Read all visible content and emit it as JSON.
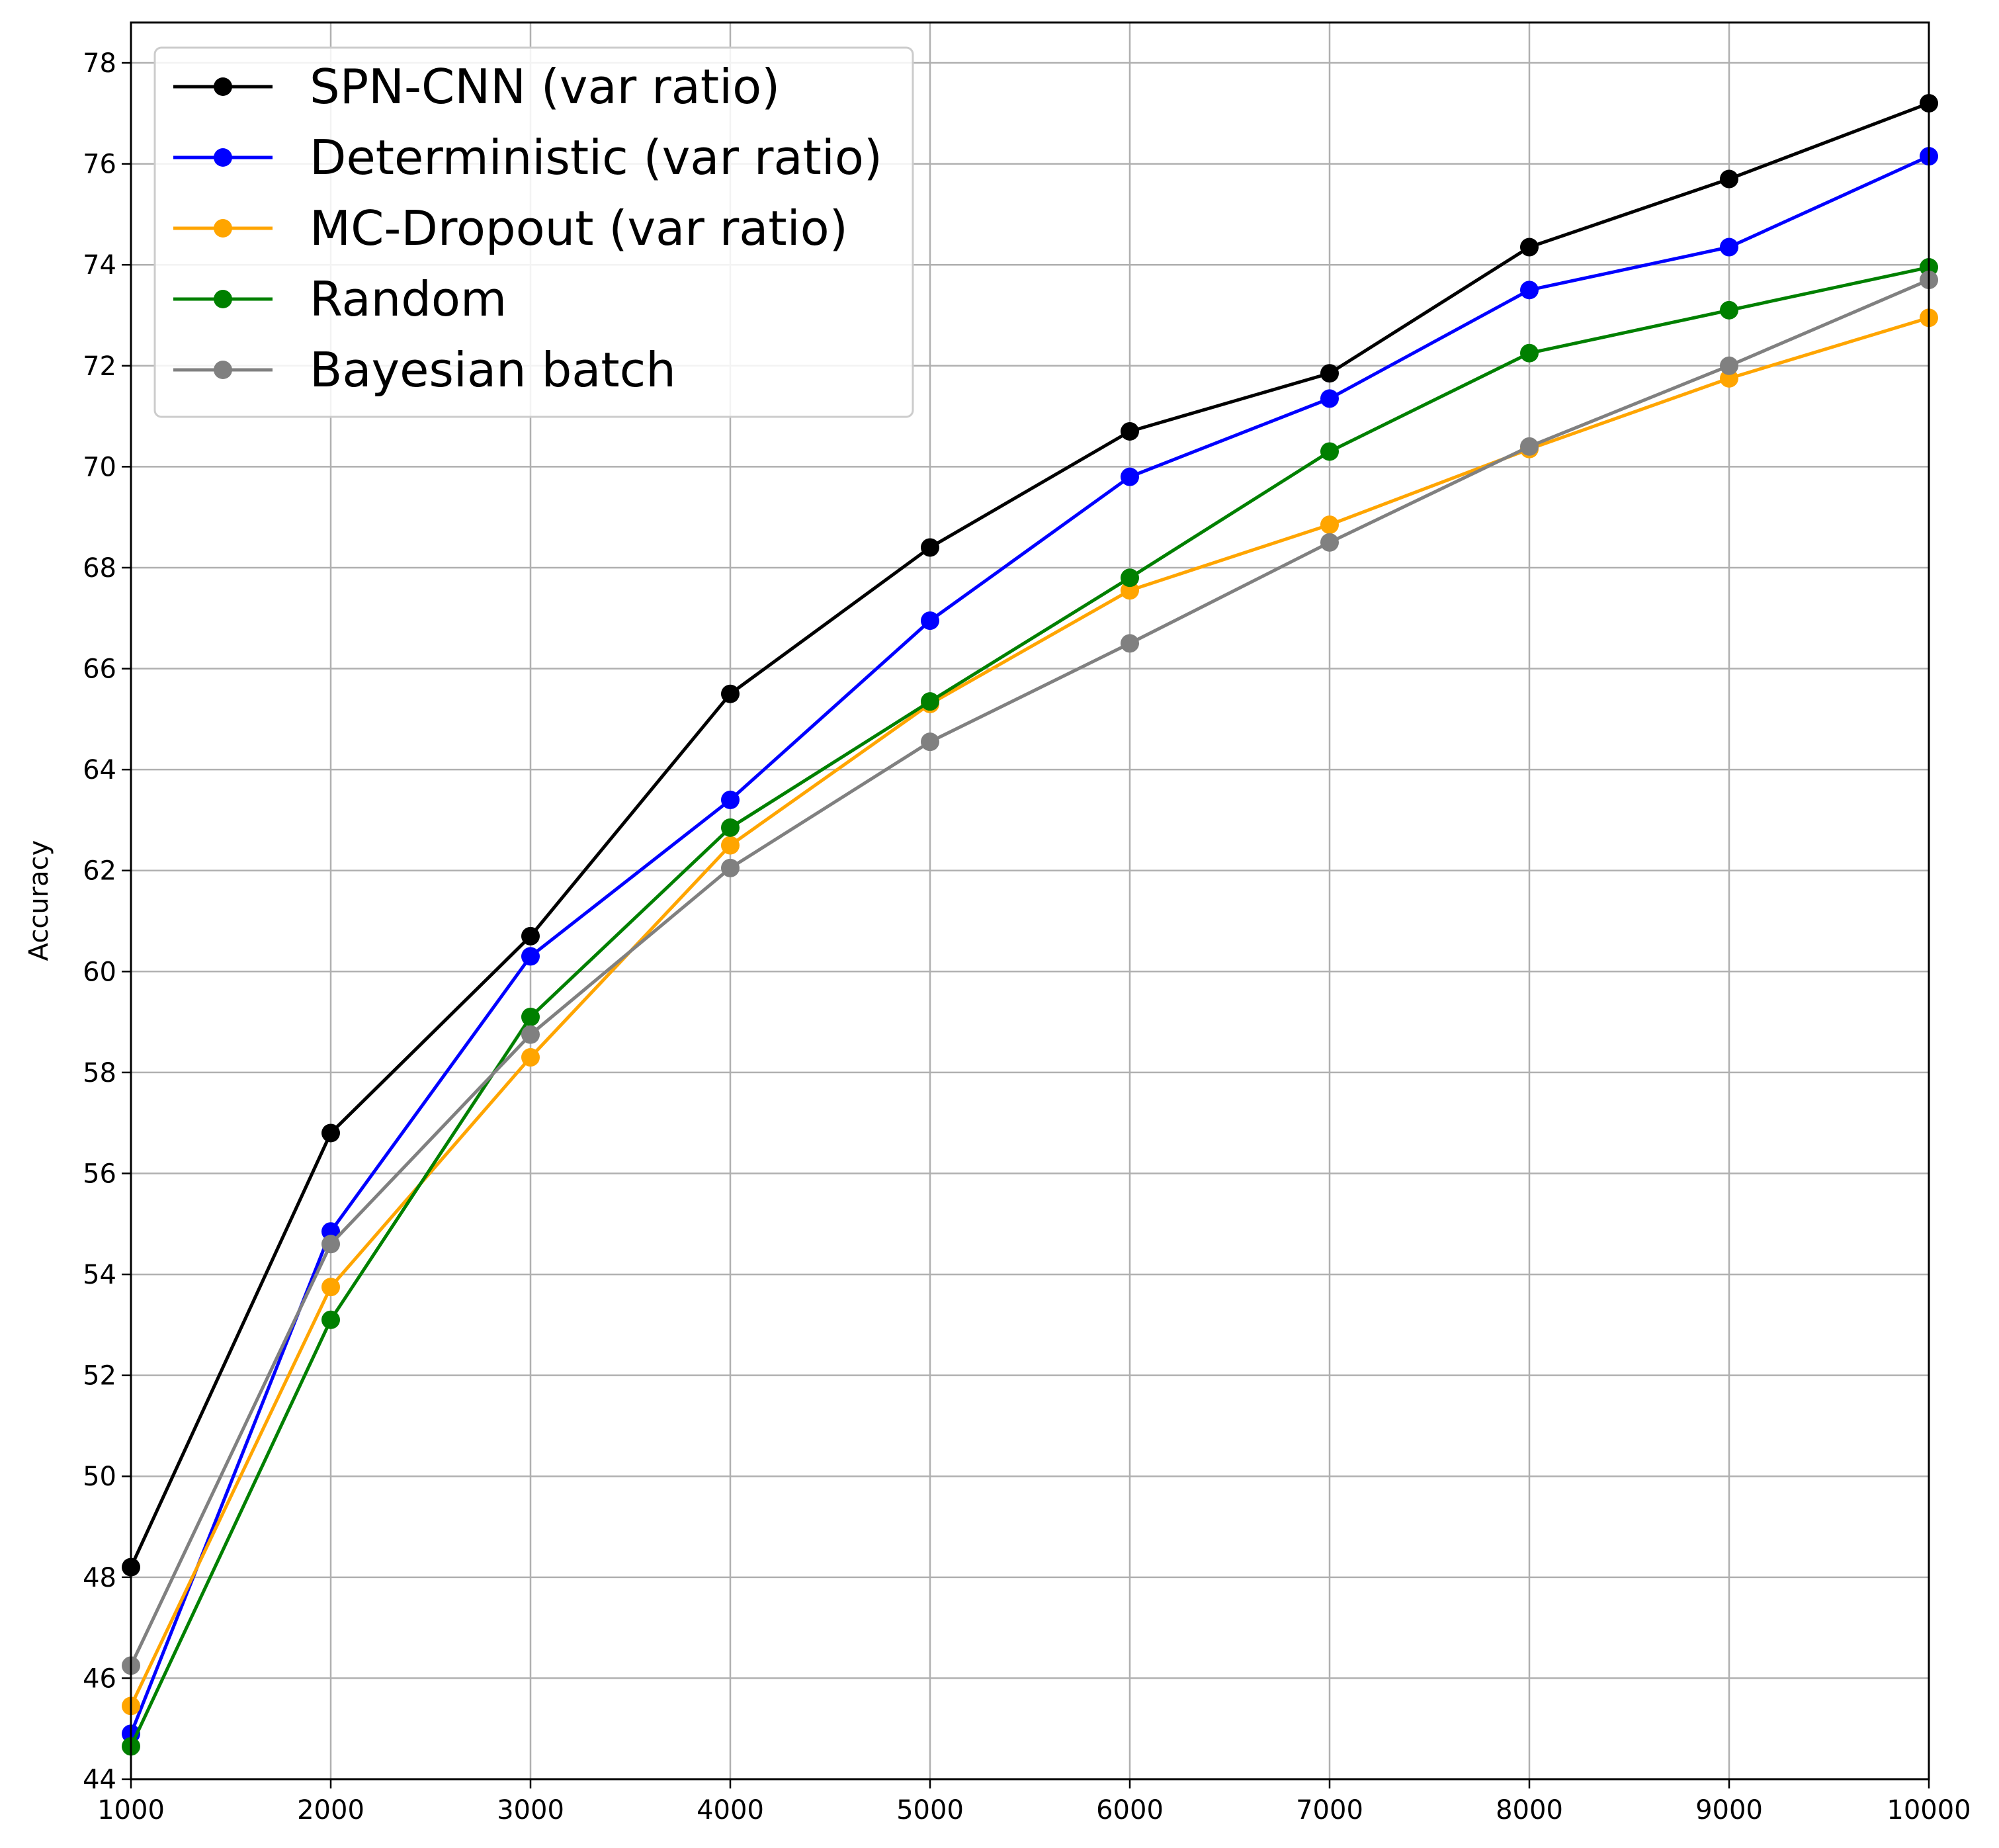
{
  "chart_data": {
    "type": "line",
    "title": "",
    "xlabel": "",
    "ylabel": "Accuracy",
    "xlim": [
      1000,
      10000
    ],
    "ylim": [
      44,
      78.8
    ],
    "grid": true,
    "legend_position": "top-left",
    "x": [
      1000,
      2000,
      3000,
      4000,
      5000,
      6000,
      7000,
      8000,
      9000,
      10000
    ],
    "x_ticks": [
      "1000",
      "2000",
      "3000",
      "4000",
      "5000",
      "6000",
      "7000",
      "8000",
      "9000",
      "10000"
    ],
    "y_ticks": [
      "44",
      "46",
      "48",
      "50",
      "52",
      "54",
      "56",
      "58",
      "60",
      "62",
      "64",
      "66",
      "68",
      "70",
      "72",
      "74",
      "76",
      "78"
    ],
    "series": [
      {
        "name": "SPN-CNN (var ratio)",
        "color": "#000000",
        "values": [
          48.2,
          56.8,
          60.7,
          65.5,
          68.4,
          70.7,
          71.85,
          74.35,
          75.7,
          77.2
        ]
      },
      {
        "name": "Deterministic (var ratio)",
        "color": "#0000ff",
        "values": [
          44.9,
          54.85,
          60.3,
          63.4,
          66.95,
          69.8,
          71.35,
          73.5,
          74.35,
          76.15
        ]
      },
      {
        "name": "MC-Dropout (var ratio)",
        "color": "#ffa500",
        "values": [
          45.45,
          53.75,
          58.3,
          62.5,
          65.3,
          67.55,
          68.85,
          70.35,
          71.75,
          72.95
        ]
      },
      {
        "name": "Random",
        "color": "#008000",
        "values": [
          44.65,
          53.1,
          59.1,
          62.85,
          65.35,
          67.8,
          70.3,
          72.25,
          73.1,
          73.95
        ]
      },
      {
        "name": "Bayesian batch",
        "color": "#808080",
        "values": [
          46.25,
          54.6,
          58.75,
          62.05,
          64.55,
          66.5,
          68.5,
          70.4,
          72.0,
          73.7
        ]
      }
    ]
  }
}
